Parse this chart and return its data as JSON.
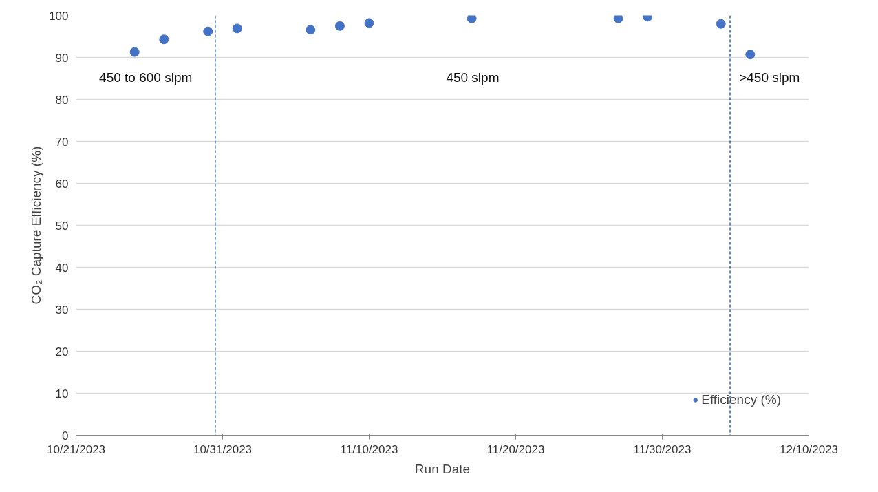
{
  "chart_data": {
    "type": "scatter",
    "xlabel": "Run Date",
    "ylabel": "CO₂ Capture Efficiency (%)",
    "x": [
      "2023-10-25",
      "2023-10-27",
      "2023-10-30",
      "2023-11-01",
      "2023-11-06",
      "2023-11-08",
      "2023-11-10",
      "2023-11-17",
      "2023-11-27",
      "2023-11-29",
      "2023-12-04",
      "2023-12-06"
    ],
    "series": [
      {
        "name": "Efficiency (%)",
        "color": "#4472c4",
        "values": [
          91.3,
          94.3,
          96.2,
          96.9,
          96.6,
          97.5,
          98.2,
          99.3,
          99.3,
          99.7,
          98.0,
          90.7
        ]
      }
    ],
    "xlim": [
      "2023-10-21",
      "2023-12-10"
    ],
    "xticks": [
      {
        "value": "2023-10-21",
        "label": "10/21/2023"
      },
      {
        "value": "2023-10-31",
        "label": "10/31/2023"
      },
      {
        "value": "2023-11-10",
        "label": "11/10/2023"
      },
      {
        "value": "2023-11-20",
        "label": "11/20/2023"
      },
      {
        "value": "2023-11-30",
        "label": "11/30/2023"
      },
      {
        "value": "2023-12-10",
        "label": "12/10/2023"
      }
    ],
    "ylim": [
      0,
      100
    ],
    "yticks": [
      0,
      10,
      20,
      30,
      40,
      50,
      60,
      70,
      80,
      90,
      100
    ],
    "ref_lines": [
      {
        "axis": "x",
        "value": "2023-10-30T12:00",
        "color": "#2e5fa8",
        "line_style": "dashed"
      },
      {
        "axis": "x",
        "value": "2023-12-04T15:00",
        "color": "#2e5fa8",
        "line_style": "dashed"
      }
    ],
    "annotations": [
      "450 to 600 slpm",
      "450 slpm",
      ">450 slpm"
    ],
    "grid": "y",
    "legend": "bottom right",
    "marker": "circle"
  }
}
